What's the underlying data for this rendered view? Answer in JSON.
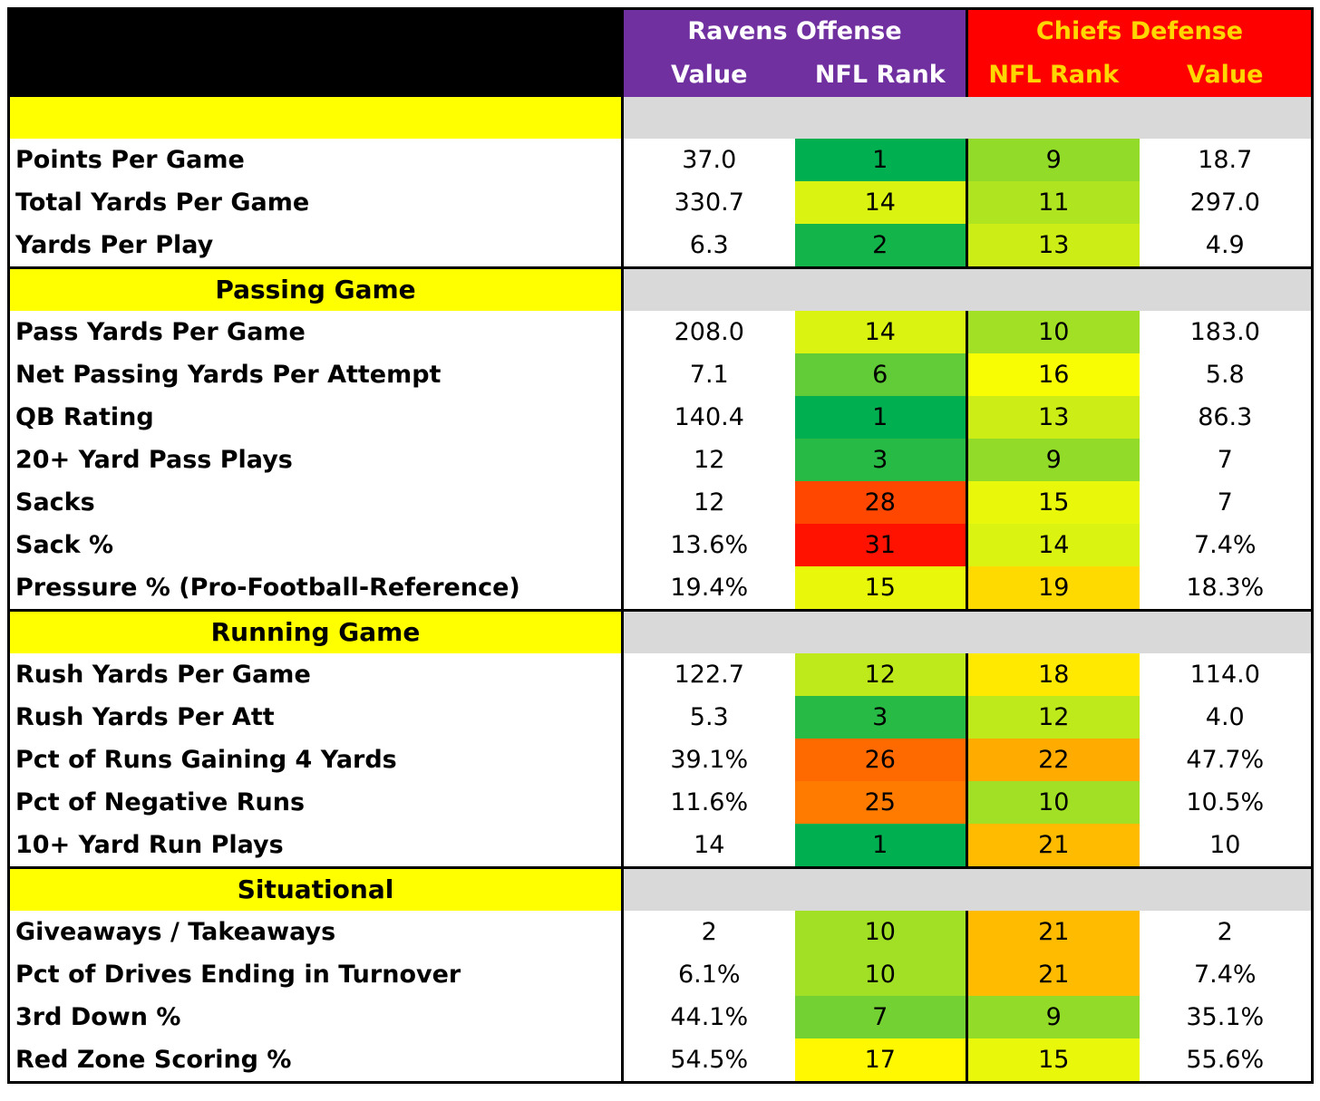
{
  "header": {
    "ravens_title": "Ravens Offense",
    "chiefs_title": "Chiefs Defense",
    "col_value": "Value",
    "col_rank": "NFL Rank"
  },
  "colors": {
    "ravens": "#7030a0",
    "chiefs": "#ff0000",
    "chiefs_text": "#ffd700",
    "section_yellow": "#ffff00",
    "section_gray": "#d9d9d9"
  },
  "sections": [
    {
      "title": "",
      "rows": [
        {
          "label": "Points Per Game",
          "ravens_value": "37.0",
          "ravens_rank": "1",
          "chiefs_rank": "9",
          "chiefs_value": "18.7"
        },
        {
          "label": "Total Yards Per Game",
          "ravens_value": "330.7",
          "ravens_rank": "14",
          "chiefs_rank": "11",
          "chiefs_value": "297.0"
        },
        {
          "label": "Yards Per Play",
          "ravens_value": "6.3",
          "ravens_rank": "2",
          "chiefs_rank": "13",
          "chiefs_value": "4.9"
        }
      ]
    },
    {
      "title": "Passing Game",
      "rows": [
        {
          "label": "Pass Yards Per Game",
          "ravens_value": "208.0",
          "ravens_rank": "14",
          "chiefs_rank": "10",
          "chiefs_value": "183.0"
        },
        {
          "label": "Net Passing Yards Per Attempt",
          "ravens_value": "7.1",
          "ravens_rank": "6",
          "chiefs_rank": "16",
          "chiefs_value": "5.8"
        },
        {
          "label": "QB Rating",
          "ravens_value": "140.4",
          "ravens_rank": "1",
          "chiefs_rank": "13",
          "chiefs_value": "86.3"
        },
        {
          "label": "20+ Yard Pass Plays",
          "ravens_value": "12",
          "ravens_rank": "3",
          "chiefs_rank": "9",
          "chiefs_value": "7"
        },
        {
          "label": "Sacks",
          "ravens_value": "12",
          "ravens_rank": "28",
          "chiefs_rank": "15",
          "chiefs_value": "7"
        },
        {
          "label": "Sack %",
          "ravens_value": "13.6%",
          "ravens_rank": "31",
          "chiefs_rank": "14",
          "chiefs_value": "7.4%"
        },
        {
          "label": "Pressure % (Pro-Football-Reference)",
          "ravens_value": "19.4%",
          "ravens_rank": "15",
          "chiefs_rank": "19",
          "chiefs_value": "18.3%"
        }
      ]
    },
    {
      "title": "Running Game",
      "rows": [
        {
          "label": "Rush Yards Per Game",
          "ravens_value": "122.7",
          "ravens_rank": "12",
          "chiefs_rank": "18",
          "chiefs_value": "114.0"
        },
        {
          "label": "Rush Yards Per Att",
          "ravens_value": "5.3",
          "ravens_rank": "3",
          "chiefs_rank": "12",
          "chiefs_value": "4.0"
        },
        {
          "label": "Pct of Runs Gaining 4 Yards",
          "ravens_value": "39.1%",
          "ravens_rank": "26",
          "chiefs_rank": "22",
          "chiefs_value": "47.7%"
        },
        {
          "label": "Pct of Negative Runs",
          "ravens_value": "11.6%",
          "ravens_rank": "25",
          "chiefs_rank": "10",
          "chiefs_value": "10.5%"
        },
        {
          "label": "10+ Yard Run Plays",
          "ravens_value": "14",
          "ravens_rank": "1",
          "chiefs_rank": "21",
          "chiefs_value": "10"
        }
      ]
    },
    {
      "title": "Situational",
      "rows": [
        {
          "label": "Giveaways / Takeaways",
          "ravens_value": "2",
          "ravens_rank": "10",
          "chiefs_rank": "21",
          "chiefs_value": "2"
        },
        {
          "label": "Pct of Drives Ending in Turnover",
          "ravens_value": "6.1%",
          "ravens_rank": "10",
          "chiefs_rank": "21",
          "chiefs_value": "7.4%"
        },
        {
          "label": "3rd Down %",
          "ravens_value": "44.1%",
          "ravens_rank": "7",
          "chiefs_rank": "9",
          "chiefs_value": "35.1%"
        },
        {
          "label": "Red Zone Scoring %",
          "ravens_value": "54.5%",
          "ravens_rank": "17",
          "chiefs_rank": "15",
          "chiefs_value": "55.6%"
        }
      ]
    }
  ]
}
